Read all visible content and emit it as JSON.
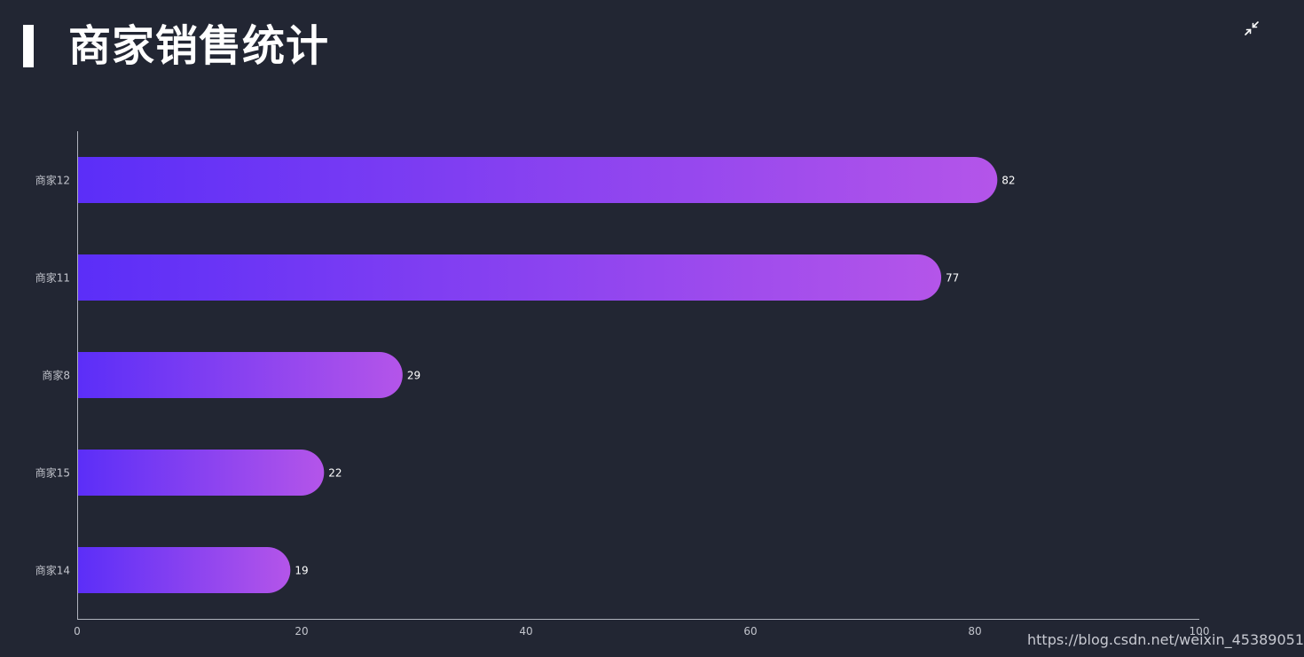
{
  "header": {
    "title": "商家销售统计"
  },
  "controls": {
    "compress_icon": "compress-arrows-icon"
  },
  "colors": {
    "background": "#222633",
    "bar_gradient_start": "#5b2ef8",
    "bar_gradient_end": "#b455e9",
    "axis_line": "#b0b3bd",
    "axis_text": "#c2c4cc",
    "label_text": "#ffffff"
  },
  "chart_data": {
    "type": "bar",
    "orientation": "horizontal",
    "categories": [
      "商家12",
      "商家11",
      "商家8",
      "商家15",
      "商家14"
    ],
    "values": [
      82,
      77,
      29,
      22,
      19
    ],
    "xlim": [
      0,
      100
    ],
    "xticks": [
      "0",
      "20",
      "40",
      "60",
      "80",
      "100"
    ],
    "grid": false,
    "data_labels": true
  },
  "watermark": "https://blog.csdn.net/weixin_45389051"
}
